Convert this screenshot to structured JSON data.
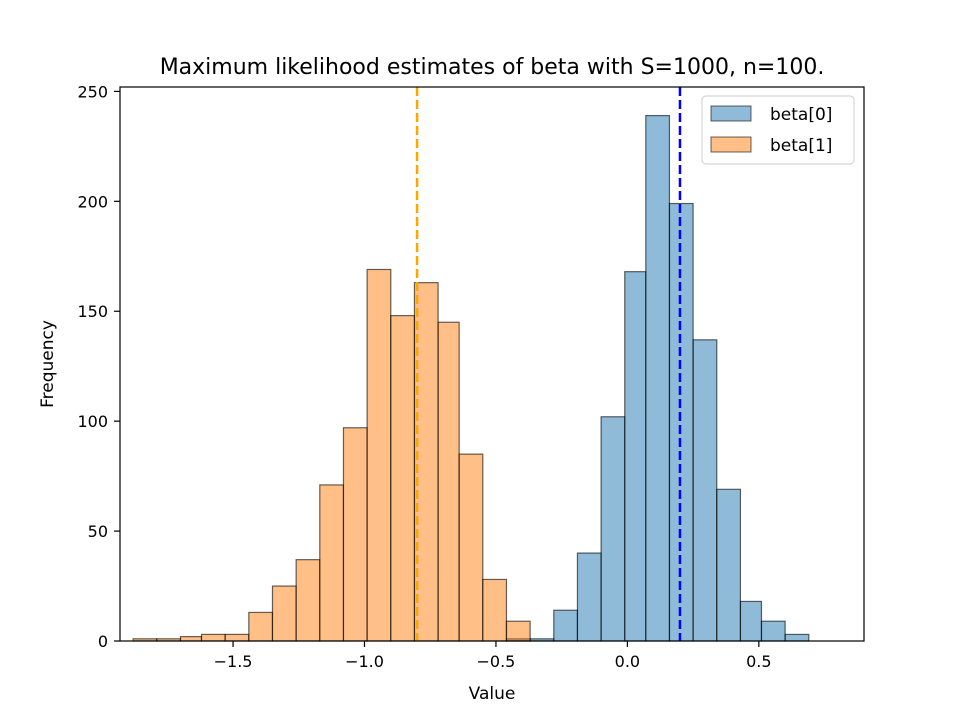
{
  "chart_data": {
    "type": "histogram",
    "title": "Maximum likelihood estimates of beta with S=1000, n=100.",
    "xlabel": "Value",
    "ylabel": "Frequency",
    "xlim": [
      -1.93,
      0.9
    ],
    "ylim": [
      0,
      252
    ],
    "xticks": [
      -1.5,
      -1.0,
      -0.5,
      0.0,
      0.5
    ],
    "xtick_labels": [
      "−1.5",
      "−1.0",
      "−0.5",
      "0.0",
      "0.5"
    ],
    "yticks": [
      0,
      50,
      100,
      150,
      200,
      250
    ],
    "ytick_labels": [
      "0",
      "50",
      "100",
      "150",
      "200",
      "250"
    ],
    "grid": false,
    "legend_position": "top-right",
    "series": [
      {
        "name": "beta[0]",
        "color": "#1f77b4",
        "alpha": 0.5,
        "bin_edges": [
          -0.46,
          -0.37,
          -0.28,
          -0.19,
          -0.1,
          -0.01,
          0.07,
          0.16,
          0.25,
          0.34,
          0.43,
          0.51,
          0.6,
          0.69
        ],
        "counts": [
          1,
          1,
          14,
          40,
          102,
          168,
          239,
          199,
          137,
          69,
          18,
          9,
          3
        ]
      },
      {
        "name": "beta[1]",
        "color": "#ff7f0e",
        "alpha": 0.5,
        "bin_edges": [
          -1.88,
          -1.79,
          -1.7,
          -1.62,
          -1.53,
          -1.44,
          -1.35,
          -1.26,
          -1.17,
          -1.08,
          -0.99,
          -0.9,
          -0.81,
          -0.72,
          -0.64,
          -0.55,
          -0.46,
          -0.37
        ],
        "counts": [
          1,
          1,
          2,
          3,
          3,
          13,
          25,
          37,
          71,
          97,
          169,
          148,
          163,
          145,
          85,
          28,
          9
        ]
      }
    ],
    "vlines": [
      {
        "x": 0.2,
        "color": "#0000ff",
        "style": "dashed"
      },
      {
        "x": -0.8,
        "color": "#ffa500",
        "style": "dashed"
      }
    ]
  }
}
